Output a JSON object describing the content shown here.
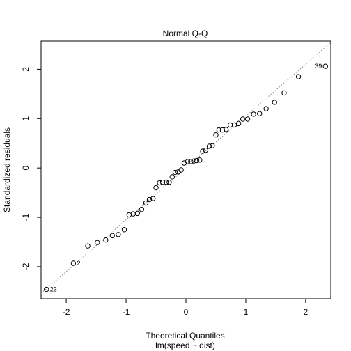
{
  "chart_data": {
    "type": "scatter",
    "title": "Normal Q-Q",
    "xlabel": "Theoretical Quantiles",
    "subtitle": "lm(speed ~ dist)",
    "ylabel": "Standardized residuals",
    "xlim": [
      -2.42,
      2.42
    ],
    "ylim": [
      -2.65,
      2.57
    ],
    "x_ticks": [
      -2,
      -1,
      0,
      1,
      2
    ],
    "y_ticks": [
      -2,
      -1,
      0,
      1,
      2
    ],
    "reference_line": {
      "intercept": 0,
      "slope": 1.05,
      "style": "dotted"
    },
    "points": [
      {
        "x": -2.33,
        "y": -2.46,
        "label": "23"
      },
      {
        "x": -1.88,
        "y": -1.93,
        "label": "2"
      },
      {
        "x": -1.64,
        "y": -1.58
      },
      {
        "x": -1.48,
        "y": -1.51
      },
      {
        "x": -1.34,
        "y": -1.46
      },
      {
        "x": -1.23,
        "y": -1.37
      },
      {
        "x": -1.13,
        "y": -1.35
      },
      {
        "x": -1.03,
        "y": -1.25
      },
      {
        "x": -0.95,
        "y": -0.95
      },
      {
        "x": -0.88,
        "y": -0.93
      },
      {
        "x": -0.81,
        "y": -0.92
      },
      {
        "x": -0.74,
        "y": -0.84
      },
      {
        "x": -0.67,
        "y": -0.71
      },
      {
        "x": -0.61,
        "y": -0.64
      },
      {
        "x": -0.55,
        "y": -0.62
      },
      {
        "x": -0.5,
        "y": -0.4
      },
      {
        "x": -0.44,
        "y": -0.3
      },
      {
        "x": -0.39,
        "y": -0.29
      },
      {
        "x": -0.33,
        "y": -0.29
      },
      {
        "x": -0.28,
        "y": -0.29
      },
      {
        "x": -0.23,
        "y": -0.18
      },
      {
        "x": -0.18,
        "y": -0.09
      },
      {
        "x": -0.13,
        "y": -0.08
      },
      {
        "x": -0.08,
        "y": -0.04
      },
      {
        "x": -0.03,
        "y": 0.1
      },
      {
        "x": 0.03,
        "y": 0.13
      },
      {
        "x": 0.08,
        "y": 0.13
      },
      {
        "x": 0.13,
        "y": 0.14
      },
      {
        "x": 0.18,
        "y": 0.15
      },
      {
        "x": 0.23,
        "y": 0.16
      },
      {
        "x": 0.28,
        "y": 0.34
      },
      {
        "x": 0.33,
        "y": 0.36
      },
      {
        "x": 0.39,
        "y": 0.44
      },
      {
        "x": 0.44,
        "y": 0.45
      },
      {
        "x": 0.5,
        "y": 0.67
      },
      {
        "x": 0.55,
        "y": 0.77
      },
      {
        "x": 0.61,
        "y": 0.77
      },
      {
        "x": 0.67,
        "y": 0.78
      },
      {
        "x": 0.74,
        "y": 0.87
      },
      {
        "x": 0.81,
        "y": 0.87
      },
      {
        "x": 0.88,
        "y": 0.9
      },
      {
        "x": 0.95,
        "y": 0.99
      },
      {
        "x": 1.03,
        "y": 0.99
      },
      {
        "x": 1.13,
        "y": 1.09
      },
      {
        "x": 1.23,
        "y": 1.1
      },
      {
        "x": 1.34,
        "y": 1.2
      },
      {
        "x": 1.48,
        "y": 1.33
      },
      {
        "x": 1.64,
        "y": 1.52
      },
      {
        "x": 1.88,
        "y": 1.85
      },
      {
        "x": 2.33,
        "y": 2.06,
        "label": "39"
      }
    ]
  }
}
